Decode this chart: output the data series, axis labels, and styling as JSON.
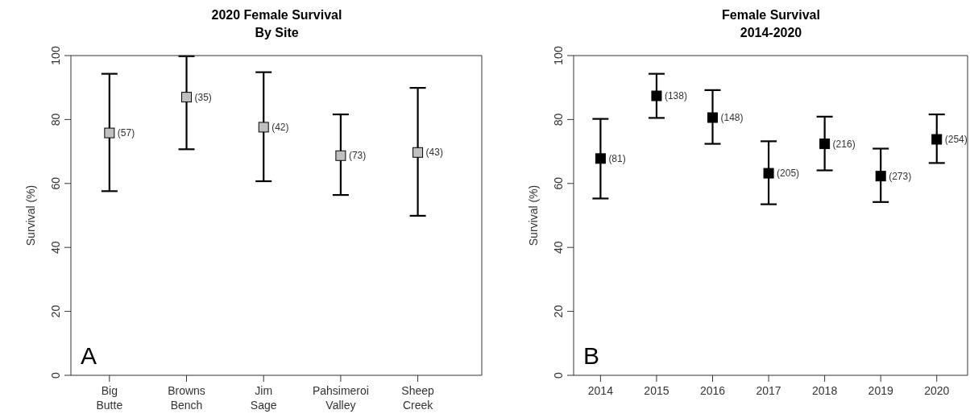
{
  "chart_data": [
    {
      "type": "scatter",
      "title": "2020 Female Survival",
      "subtitle": "By Site",
      "ylabel": "Survival (%)",
      "categories": [
        "Big Butte",
        "Browns Bench",
        "Jim Sage",
        "Pahsimeroi Valley",
        "Sheep Creek"
      ],
      "series": [
        {
          "color": "#c0c0c0",
          "values": [
            75.8,
            87.0,
            77.6,
            68.7,
            69.7
          ],
          "errors": [
            [
              57.6,
              94.3
            ],
            [
              70.7,
              99.8
            ],
            [
              60.7,
              94.8
            ],
            [
              56.4,
              81.6
            ],
            [
              49.9,
              89.9
            ]
          ]
        }
      ],
      "ylim": [
        0,
        100
      ],
      "yticks": [
        0,
        20,
        40,
        60,
        80,
        100
      ],
      "marker": "square",
      "grid": false,
      "legend": false,
      "annotations": [
        "A",
        {
          "text": "(57)",
          "x": "Big Butte",
          "y": 75.8
        },
        {
          "text": "(35)",
          "x": "Browns Bench",
          "y": 87.0
        },
        {
          "text": "(42)",
          "x": "Jim Sage",
          "y": 77.6
        },
        {
          "text": "(73)",
          "x": "Pahsimeroi Valley",
          "y": 68.7
        },
        {
          "text": "(43)",
          "x": "Sheep Creek",
          "y": 69.7
        }
      ]
    },
    {
      "type": "scatter",
      "title": "Female Survival",
      "subtitle": "2014-2020",
      "ylabel": "Survival (%)",
      "categories": [
        "2014",
        "2015",
        "2016",
        "2017",
        "2018",
        "2019",
        "2020"
      ],
      "series": [
        {
          "color": "#000000",
          "values": [
            67.8,
            87.4,
            80.6,
            63.2,
            72.4,
            62.3,
            73.8
          ],
          "errors": [
            [
              55.3,
              80.2
            ],
            [
              80.5,
              94.3
            ],
            [
              72.4,
              89.2
            ],
            [
              53.5,
              73.2
            ],
            [
              64.1,
              80.9
            ],
            [
              54.2,
              70.9
            ],
            [
              66.4,
              81.6
            ]
          ]
        }
      ],
      "ylim": [
        0,
        100
      ],
      "yticks": [
        0,
        20,
        40,
        60,
        80,
        100
      ],
      "marker": "square",
      "grid": false,
      "legend": false,
      "annotations": [
        "B",
        {
          "text": "(81)",
          "x": "2014",
          "y": 67.8
        },
        {
          "text": "(138)",
          "x": "2015",
          "y": 87.4
        },
        {
          "text": "(148)",
          "x": "2016",
          "y": 80.6
        },
        {
          "text": "(205)",
          "x": "2017",
          "y": 63.2
        },
        {
          "text": "(216)",
          "x": "2018",
          "y": 72.4
        },
        {
          "text": "(273)",
          "x": "2019",
          "y": 62.3
        },
        {
          "text": "(254)",
          "x": "2020",
          "y": 73.8
        }
      ]
    }
  ]
}
